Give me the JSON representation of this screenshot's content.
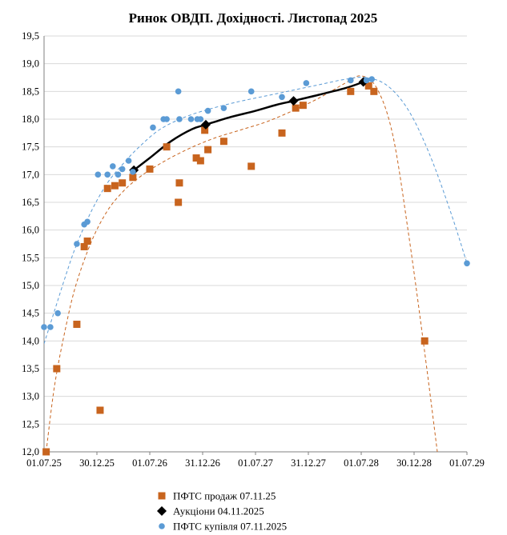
{
  "chart_data": {
    "type": "scatter",
    "title": "Ринок ОВДП. Дохідності.  Листопад 2025",
    "x_ticks": [
      "01.07.25",
      "30.12.25",
      "01.07.26",
      "31.12.26",
      "01.07.27",
      "31.12.27",
      "01.07.28",
      "30.12.28",
      "01.07.29"
    ],
    "y_ticks": [
      "12,0",
      "12,5",
      "13,0",
      "13,5",
      "14,0",
      "14,5",
      "15,0",
      "15,5",
      "16,0",
      "16,5",
      "17,0",
      "17,5",
      "18,0",
      "18,5",
      "19,0",
      "19,5"
    ],
    "xlim": [
      0,
      4
    ],
    "ylim": [
      12.0,
      19.5
    ],
    "grid": "horizontal",
    "legend_position": "bottom",
    "series": [
      {
        "name": "ПФТС продаж 07.11.25",
        "marker": "square",
        "color": "#c8641e",
        "points": [
          [
            0.02,
            12.0
          ],
          [
            0.12,
            13.5
          ],
          [
            0.31,
            14.3
          ],
          [
            0.38,
            15.7
          ],
          [
            0.41,
            15.8
          ],
          [
            0.53,
            12.75
          ],
          [
            0.6,
            16.75
          ],
          [
            0.67,
            16.8
          ],
          [
            0.74,
            16.85
          ],
          [
            0.84,
            16.95
          ],
          [
            1.0,
            17.1
          ],
          [
            1.16,
            17.5
          ],
          [
            1.27,
            16.5
          ],
          [
            1.28,
            16.85
          ],
          [
            1.44,
            17.3
          ],
          [
            1.48,
            17.25
          ],
          [
            1.52,
            17.8
          ],
          [
            1.55,
            17.45
          ],
          [
            1.7,
            17.6
          ],
          [
            1.96,
            17.15
          ],
          [
            2.25,
            17.75
          ],
          [
            2.38,
            18.2
          ],
          [
            2.45,
            18.25
          ],
          [
            2.9,
            18.5
          ],
          [
            3.07,
            18.6
          ],
          [
            3.12,
            18.5
          ],
          [
            3.6,
            14.0
          ]
        ]
      },
      {
        "name": "Аукціони 04.11.2025",
        "marker": "diamond",
        "color": "#000000",
        "points": [
          [
            0.85,
            17.08
          ],
          [
            1.53,
            17.9
          ],
          [
            2.36,
            18.33
          ],
          [
            3.02,
            18.67
          ]
        ]
      },
      {
        "name": "ПФТС купівля 07.11.2025",
        "marker": "circle",
        "color": "#5b9bd5",
        "points": [
          [
            0.0,
            14.25
          ],
          [
            0.06,
            14.25
          ],
          [
            0.13,
            14.5
          ],
          [
            0.31,
            15.75
          ],
          [
            0.38,
            16.1
          ],
          [
            0.41,
            16.15
          ],
          [
            0.51,
            17.0
          ],
          [
            0.6,
            17.0
          ],
          [
            0.65,
            17.15
          ],
          [
            0.7,
            17.0
          ],
          [
            0.74,
            17.1
          ],
          [
            0.8,
            17.25
          ],
          [
            0.84,
            17.05
          ],
          [
            1.03,
            17.85
          ],
          [
            1.13,
            18.0
          ],
          [
            1.16,
            18.0
          ],
          [
            1.27,
            18.5
          ],
          [
            1.28,
            18.0
          ],
          [
            1.39,
            18.0
          ],
          [
            1.45,
            18.0
          ],
          [
            1.48,
            18.0
          ],
          [
            1.55,
            18.15
          ],
          [
            1.7,
            18.2
          ],
          [
            1.96,
            18.5
          ],
          [
            2.25,
            18.4
          ],
          [
            2.48,
            18.65
          ],
          [
            2.9,
            18.7
          ],
          [
            3.05,
            18.7
          ],
          [
            3.1,
            18.72
          ],
          [
            4.0,
            15.4
          ]
        ]
      }
    ],
    "trendlines": [
      {
        "series": "ПФТС продаж 07.11.25",
        "style": "dashed",
        "color": "#c8641e",
        "points": [
          [
            0.02,
            12.0
          ],
          [
            0.1,
            13.2
          ],
          [
            0.2,
            14.2
          ],
          [
            0.3,
            15.0
          ],
          [
            0.45,
            15.8
          ],
          [
            0.6,
            16.35
          ],
          [
            0.75,
            16.7
          ],
          [
            0.9,
            16.95
          ],
          [
            1.1,
            17.2
          ],
          [
            1.35,
            17.45
          ],
          [
            1.6,
            17.65
          ],
          [
            1.85,
            17.8
          ],
          [
            2.1,
            17.95
          ],
          [
            2.35,
            18.15
          ],
          [
            2.6,
            18.38
          ],
          [
            2.85,
            18.65
          ],
          [
            3.0,
            18.78
          ],
          [
            3.15,
            18.55
          ],
          [
            3.3,
            17.7
          ],
          [
            3.45,
            15.9
          ],
          [
            3.6,
            13.8
          ],
          [
            3.72,
            12.0
          ]
        ]
      },
      {
        "series": "Аукціони 04.11.2025",
        "style": "solid",
        "color": "#000000",
        "points": [
          [
            0.85,
            17.08
          ],
          [
            1.0,
            17.3
          ],
          [
            1.2,
            17.6
          ],
          [
            1.4,
            17.82
          ],
          [
            1.53,
            17.9
          ],
          [
            1.75,
            18.03
          ],
          [
            2.0,
            18.15
          ],
          [
            2.2,
            18.26
          ],
          [
            2.36,
            18.33
          ],
          [
            2.6,
            18.44
          ],
          [
            2.85,
            18.56
          ],
          [
            3.02,
            18.67
          ]
        ]
      },
      {
        "series": "ПФТС купівля 07.11.2025",
        "style": "dashed",
        "color": "#5b9bd5",
        "points": [
          [
            0.0,
            13.95
          ],
          [
            0.1,
            14.55
          ],
          [
            0.2,
            15.15
          ],
          [
            0.3,
            15.7
          ],
          [
            0.45,
            16.35
          ],
          [
            0.6,
            16.85
          ],
          [
            0.75,
            17.2
          ],
          [
            0.9,
            17.5
          ],
          [
            1.1,
            17.82
          ],
          [
            1.35,
            18.05
          ],
          [
            1.6,
            18.2
          ],
          [
            1.85,
            18.32
          ],
          [
            2.1,
            18.42
          ],
          [
            2.35,
            18.52
          ],
          [
            2.6,
            18.62
          ],
          [
            2.85,
            18.72
          ],
          [
            3.05,
            18.75
          ],
          [
            3.25,
            18.6
          ],
          [
            3.45,
            18.15
          ],
          [
            3.65,
            17.35
          ],
          [
            3.85,
            16.3
          ],
          [
            4.0,
            15.4
          ]
        ]
      }
    ]
  }
}
